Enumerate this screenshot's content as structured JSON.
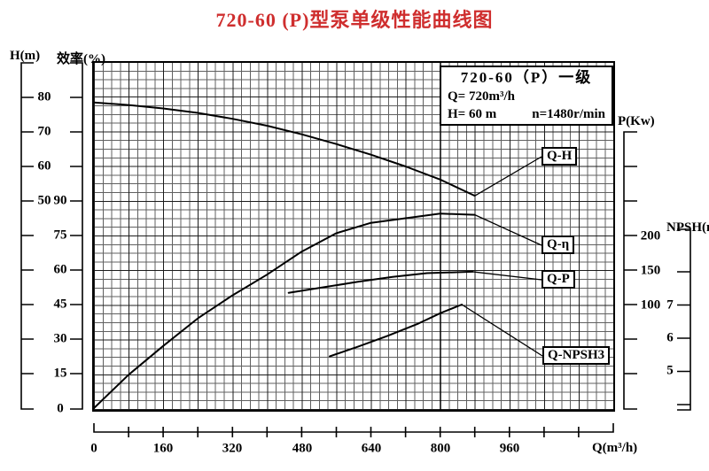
{
  "title": "720-60 (P)型泵单级性能曲线图",
  "title_color": "#cf2e2e",
  "info_box": {
    "model": "720-60（P）一级",
    "flow": "Q= 720m³/h",
    "head": "H= 60 m",
    "speed": "n=1480r/min"
  },
  "axes": {
    "h": {
      "label": "H(m)",
      "ticks": [
        "80",
        "70",
        "60",
        "50"
      ]
    },
    "eff": {
      "label": "效率(%)",
      "ticks": [
        "90",
        "75",
        "60",
        "45",
        "30",
        "15",
        "0"
      ]
    },
    "p": {
      "label": "P(Kw)",
      "ticks": [
        "200",
        "150",
        "100"
      ]
    },
    "npsh": {
      "label": "NPSH(m)",
      "ticks": [
        "7",
        "6",
        "5"
      ]
    },
    "q": {
      "label": "Q(m³/h)",
      "ticks": [
        "0",
        "160",
        "320",
        "480",
        "640",
        "800",
        "960"
      ]
    }
  },
  "curve_labels": {
    "qh": "Q-H",
    "qe": "Q-η",
    "qp": "Q-P",
    "qnpsh": "Q-NPSH3"
  },
  "chart_data": {
    "type": "line",
    "title": "720-60 (P)型泵单级性能曲线图",
    "xlabel": "Q(m³/h)",
    "x_ticks": [
      0,
      160,
      320,
      480,
      640,
      800,
      960
    ],
    "x_range": [
      0,
      1200
    ],
    "grid": true,
    "axis_ranges": {
      "H(m)": [
        50,
        80
      ],
      "效率(%)": [
        0,
        90
      ],
      "P(Kw)": [
        100,
        200
      ],
      "NPSH(m)": [
        5,
        7
      ]
    },
    "series": [
      {
        "name": "Q-H",
        "axis": "H(m)",
        "x": [
          0,
          80,
          160,
          240,
          320,
          400,
          480,
          560,
          640,
          720,
          800,
          880
        ],
        "y": [
          78.5,
          77.8,
          76.8,
          75.5,
          73.8,
          71.8,
          69.3,
          66.5,
          63.4,
          60.0,
          56.2,
          51.5
        ]
      },
      {
        "name": "Q-η",
        "axis": "效率(%)",
        "x": [
          0,
          80,
          160,
          240,
          320,
          400,
          480,
          560,
          640,
          720,
          800,
          880
        ],
        "y": [
          0,
          14.5,
          27,
          39,
          49,
          58,
          68,
          76,
          80.5,
          82.5,
          84.5,
          84
        ]
      },
      {
        "name": "Q-P",
        "axis": "P(Kw)",
        "x": [
          450,
          530,
          610,
          690,
          770,
          875
        ],
        "y": [
          117,
          125,
          133,
          140,
          145.5,
          147.5
        ]
      },
      {
        "name": "Q-NPSH3",
        "axis": "NPSH(m)",
        "x": [
          545,
          610,
          680,
          750,
          800,
          850
        ],
        "y": [
          5.5,
          5.78,
          6.1,
          6.45,
          6.75,
          7.0
        ]
      }
    ],
    "rated_point_text": [
      "720-60（P）一级",
      "Q= 720m³/h",
      "H= 60 m",
      "n=1480r/min"
    ]
  }
}
